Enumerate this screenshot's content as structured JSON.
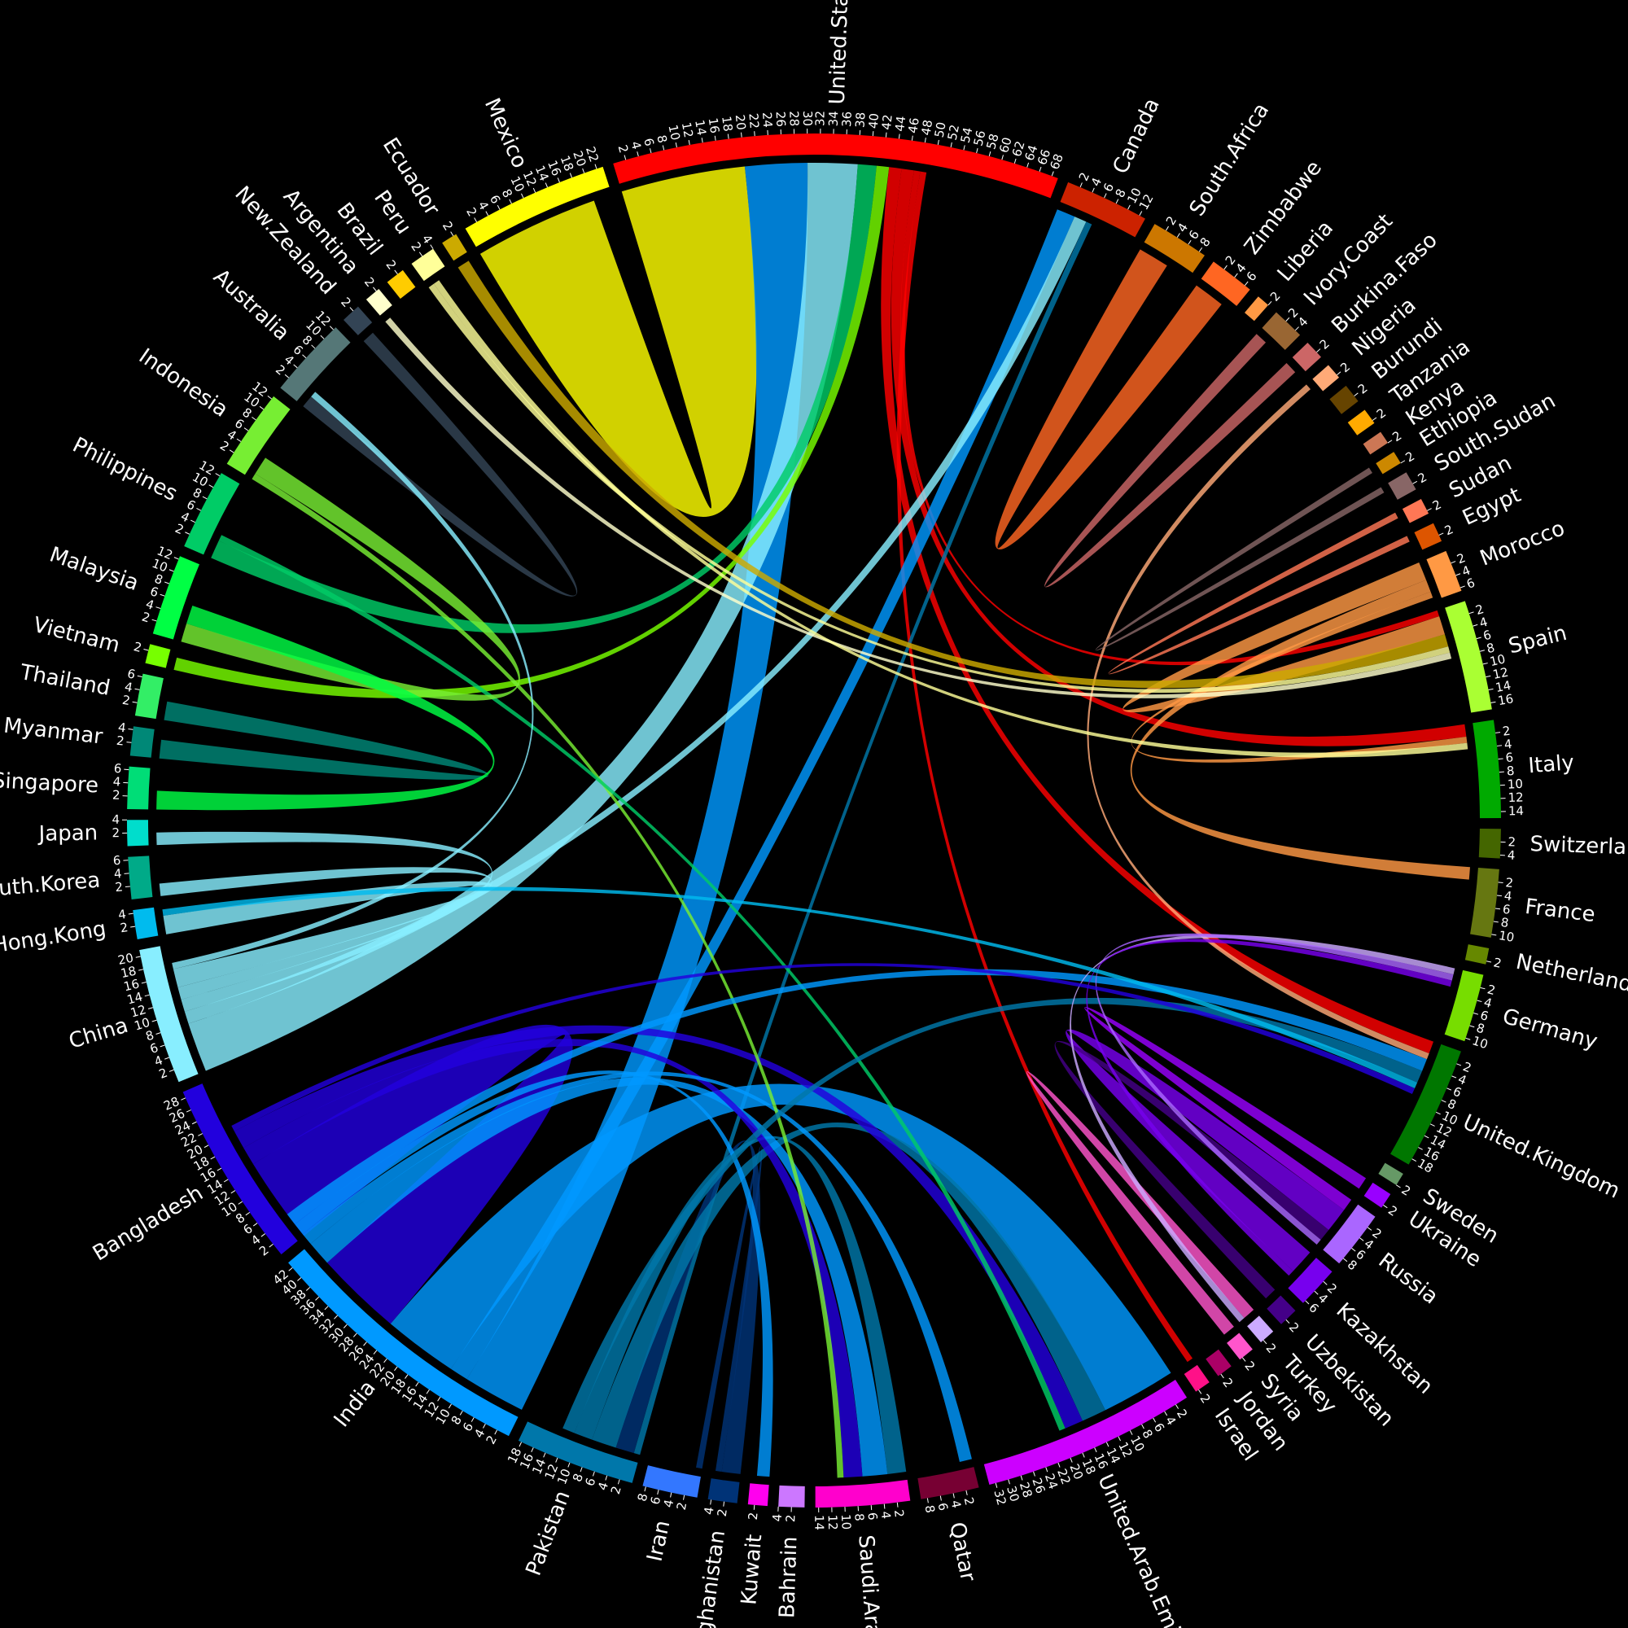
{
  "chart_data": {
    "type": "chord",
    "sectors": [
      {
        "name": "United.States",
        "value": 69,
        "color": "#ff0000",
        "ticks": [
          2,
          4,
          6,
          8,
          10,
          12,
          14,
          16,
          18,
          20,
          22,
          24,
          26,
          28,
          30,
          32,
          34,
          36,
          38,
          40,
          42,
          44,
          46,
          48,
          50,
          52,
          54,
          56,
          58,
          60,
          62,
          64,
          66,
          68
        ]
      },
      {
        "name": "Canada",
        "value": 13,
        "color": "#cc2200",
        "ticks": [
          2,
          4,
          6,
          8,
          10,
          12
        ]
      },
      {
        "name": "South.Africa",
        "value": 9,
        "color": "#cc7700",
        "ticks": [
          2,
          4,
          6,
          8
        ]
      },
      {
        "name": "Zimbabwe",
        "value": 7,
        "color": "#ff6622",
        "ticks": [
          2,
          4,
          6
        ]
      },
      {
        "name": "Liberia",
        "value": 2,
        "color": "#ff9944",
        "ticks": [
          2
        ]
      },
      {
        "name": "Ivory.Coast",
        "value": 5,
        "color": "#996633",
        "ticks": [
          2,
          4
        ]
      },
      {
        "name": "Burkina.Faso",
        "value": 3,
        "color": "#cc6666",
        "ticks": [
          2
        ]
      },
      {
        "name": "Nigeria",
        "value": 2.5,
        "color": "#ffaa77",
        "ticks": [
          2
        ]
      },
      {
        "name": "Burundi",
        "value": 3,
        "color": "#664400",
        "ticks": [
          2
        ]
      },
      {
        "name": "Tanzania",
        "value": 2.5,
        "color": "#ffaa00",
        "ticks": [
          2
        ]
      },
      {
        "name": "Kenya",
        "value": 2,
        "color": "#cc7755",
        "ticks": [
          2
        ]
      },
      {
        "name": "Ethiopia",
        "value": 2,
        "color": "#cc8800",
        "ticks": [
          2
        ]
      },
      {
        "name": "South.Sudan",
        "value": 3,
        "color": "#886666",
        "ticks": [
          2
        ]
      },
      {
        "name": "Sudan",
        "value": 2.5,
        "color": "#ff7755",
        "ticks": [
          2
        ]
      },
      {
        "name": "Egypt",
        "value": 3,
        "color": "#dd5500",
        "ticks": [
          2
        ]
      },
      {
        "name": "Morocco",
        "value": 6.5,
        "color": "#ff9944",
        "ticks": [
          2,
          4,
          6
        ]
      },
      {
        "name": "Spain",
        "value": 17,
        "color": "#aaff33",
        "ticks": [
          2,
          4,
          6,
          8,
          10,
          12,
          14,
          16
        ]
      },
      {
        "name": "Italy",
        "value": 15,
        "color": "#00aa00",
        "ticks": [
          2,
          4,
          6,
          8,
          10,
          12,
          14
        ]
      },
      {
        "name": "Switzerland",
        "value": 4.5,
        "color": "#446600",
        "ticks": [
          2,
          4
        ]
      },
      {
        "name": "France",
        "value": 10.5,
        "color": "#667711",
        "ticks": [
          2,
          4,
          6,
          8,
          10
        ]
      },
      {
        "name": "Netherlands",
        "value": 2.5,
        "color": "#668800",
        "ticks": [
          2
        ]
      },
      {
        "name": "Germany",
        "value": 10.5,
        "color": "#77dd00",
        "ticks": [
          2,
          4,
          6,
          8,
          10
        ]
      },
      {
        "name": "United.Kingdom",
        "value": 19,
        "color": "#007700",
        "ticks": [
          2,
          4,
          6,
          8,
          10,
          12,
          14,
          16,
          18
        ]
      },
      {
        "name": "Sweden",
        "value": 2,
        "color": "#669966",
        "ticks": [
          2
        ]
      },
      {
        "name": "Ukraine",
        "value": 2.5,
        "color": "#9900ff",
        "ticks": [
          2
        ]
      },
      {
        "name": "Russia",
        "value": 9,
        "color": "#aa66ff",
        "ticks": [
          2,
          4,
          6,
          8
        ]
      },
      {
        "name": "Kazakhstan",
        "value": 6.5,
        "color": "#7700ee",
        "ticks": [
          2,
          4,
          6
        ]
      },
      {
        "name": "Uzbekistan",
        "value": 3,
        "color": "#440088",
        "ticks": [
          2
        ]
      },
      {
        "name": "Turkey",
        "value": 2.5,
        "color": "#ccaaff",
        "ticks": [
          2
        ]
      },
      {
        "name": "Syria",
        "value": 2.5,
        "color": "#ff55cc",
        "ticks": [
          2
        ]
      },
      {
        "name": "Jordan",
        "value": 2.5,
        "color": "#aa0066",
        "ticks": [
          2
        ]
      },
      {
        "name": "Israel",
        "value": 2.5,
        "color": "#ff1188",
        "ticks": [
          2
        ]
      },
      {
        "name": "United.Arab.Emirates",
        "value": 33,
        "color": "#cc00ff",
        "ticks": [
          2,
          4,
          6,
          8,
          10,
          12,
          14,
          16,
          18,
          20,
          22,
          24,
          26,
          28,
          30,
          32
        ]
      },
      {
        "name": "Qatar",
        "value": 9,
        "color": "#770033",
        "ticks": [
          2,
          4,
          6,
          8
        ]
      },
      {
        "name": "Saudi.Arabia",
        "value": 14.5,
        "color": "#ff00cc",
        "ticks": [
          2,
          4,
          6,
          8,
          10,
          12,
          14
        ]
      },
      {
        "name": "Bahrain",
        "value": 4,
        "color": "#cc77ff",
        "ticks": [
          2,
          4
        ]
      },
      {
        "name": "Kuwait",
        "value": 3,
        "color": "#ff00ee",
        "ticks": [
          2
        ]
      },
      {
        "name": "Afghanistan",
        "value": 4.5,
        "color": "#003377",
        "ticks": [
          2,
          4
        ]
      },
      {
        "name": "Iran",
        "value": 8.5,
        "color": "#3377ff",
        "ticks": [
          2,
          4,
          6,
          8
        ]
      },
      {
        "name": "Pakistan",
        "value": 18.5,
        "color": "#0077aa",
        "ticks": [
          2,
          4,
          6,
          8,
          10,
          12,
          14,
          16,
          18
        ]
      },
      {
        "name": "India",
        "value": 43,
        "color": "#0099ff",
        "ticks": [
          2,
          4,
          6,
          8,
          10,
          12,
          14,
          16,
          18,
          20,
          22,
          24,
          26,
          28,
          30,
          32,
          34,
          36,
          38,
          40,
          42
        ]
      },
      {
        "name": "Bangladesh",
        "value": 29,
        "color": "#2200dd",
        "ticks": [
          2,
          4,
          6,
          8,
          10,
          12,
          14,
          16,
          18,
          20,
          22,
          24,
          26,
          28
        ]
      },
      {
        "name": "China",
        "value": 21,
        "color": "#88eeff",
        "ticks": [
          2,
          4,
          6,
          8,
          10,
          12,
          14,
          16,
          18,
          20
        ]
      },
      {
        "name": "Hong.Kong",
        "value": 4.5,
        "color": "#00bbee",
        "ticks": [
          2,
          4
        ]
      },
      {
        "name": "South.Korea",
        "value": 6.5,
        "color": "#00aa88",
        "ticks": [
          2,
          4,
          6
        ]
      },
      {
        "name": "Japan",
        "value": 4,
        "color": "#00ddcc",
        "ticks": [
          2,
          4
        ]
      },
      {
        "name": "Singapore",
        "value": 6.5,
        "color": "#00dd77",
        "ticks": [
          2,
          4,
          6
        ]
      },
      {
        "name": "Myanmar",
        "value": 4.5,
        "color": "#008877",
        "ticks": [
          2,
          4
        ]
      },
      {
        "name": "Thailand",
        "value": 6.5,
        "color": "#33ee66",
        "ticks": [
          2,
          4,
          6
        ]
      },
      {
        "name": "Vietnam",
        "value": 3,
        "color": "#77ff00",
        "ticks": [
          2
        ]
      },
      {
        "name": "Malaysia",
        "value": 12.5,
        "color": "#00ff44",
        "ticks": [
          2,
          4,
          6,
          8,
          10,
          12
        ]
      },
      {
        "name": "Philippines",
        "value": 12.5,
        "color": "#00cc66",
        "ticks": [
          2,
          4,
          6,
          8,
          10,
          12
        ]
      },
      {
        "name": "Indonesia",
        "value": 12.5,
        "color": "#77ee33",
        "ticks": [
          2,
          4,
          6,
          8,
          10,
          12
        ]
      },
      {
        "name": "Australia",
        "value": 12.5,
        "color": "#557777",
        "ticks": [
          2,
          4,
          6,
          8,
          10,
          12
        ]
      },
      {
        "name": "New.Zealand",
        "value": 3,
        "color": "#334455",
        "ticks": [
          2
        ]
      },
      {
        "name": "Argentina",
        "value": 2.5,
        "color": "#ffffcc",
        "ticks": [
          2
        ]
      },
      {
        "name": "Brazil",
        "value": 3,
        "color": "#ffcc00",
        "ticks": [
          2
        ]
      },
      {
        "name": "Peru",
        "value": 4,
        "color": "#ffff99",
        "ticks": [
          2,
          4
        ]
      },
      {
        "name": "Ecuador",
        "value": 2.5,
        "color": "#ccaa00",
        "ticks": [
          2
        ]
      },
      {
        "name": "Mexico",
        "value": 23,
        "color": "#ffff00",
        "ticks": [
          2,
          4,
          6,
          8,
          10,
          12,
          14,
          16,
          18,
          20,
          22
        ]
      }
    ],
    "flows": [
      {
        "from": "Mexico",
        "to": "United.States",
        "value": 20
      },
      {
        "from": "India",
        "to": "United.States",
        "value": 10
      },
      {
        "from": "China",
        "to": "United.States",
        "value": 8
      },
      {
        "from": "Philippines",
        "to": "United.States",
        "value": 3
      },
      {
        "from": "Vietnam",
        "to": "United.States",
        "value": 2
      },
      {
        "from": "United.States",
        "to": "United.Kingdom",
        "value": 2
      },
      {
        "from": "United.States",
        "to": "Italy",
        "value": 2
      },
      {
        "from": "United.States",
        "to": "Spain",
        "value": 1
      },
      {
        "from": "United.States",
        "to": "Israel",
        "value": 1
      },
      {
        "from": "India",
        "to": "Canada",
        "value": 3
      },
      {
        "from": "China",
        "to": "Canada",
        "value": 2
      },
      {
        "from": "Pakistan",
        "to": "Canada",
        "value": 1
      },
      {
        "from": "Zimbabwe",
        "to": "South.Africa",
        "value": 5
      },
      {
        "from": "Burkina.Faso",
        "to": "Ivory.Coast",
        "value": 2
      },
      {
        "from": "Nigeria",
        "to": "United.Kingdom",
        "value": 1
      },
      {
        "from": "South.Sudan",
        "to": "Ethiopia",
        "value": 1
      },
      {
        "from": "Sudan",
        "to": "Egypt",
        "value": 1
      },
      {
        "from": "Morocco",
        "to": "Spain",
        "value": 3
      },
      {
        "from": "Morocco",
        "to": "France",
        "value": 2
      },
      {
        "from": "Morocco",
        "to": "Italy",
        "value": 1
      },
      {
        "from": "Ecuador",
        "to": "Spain",
        "value": 2
      },
      {
        "from": "Peru",
        "to": "Spain",
        "value": 1
      },
      {
        "from": "Argentina",
        "to": "Spain",
        "value": 1
      },
      {
        "from": "Peru",
        "to": "Italy",
        "value": 1
      },
      {
        "from": "Ukraine",
        "to": "Russia",
        "value": 2
      },
      {
        "from": "Kazakhstan",
        "to": "Russia",
        "value": 4
      },
      {
        "from": "Uzbekistan",
        "to": "Russia",
        "value": 2
      },
      {
        "from": "Syria",
        "to": "Turkey",
        "value": 2
      },
      {
        "from": "India",
        "to": "United.Arab.Emirates",
        "value": 12
      },
      {
        "from": "Bangladesh",
        "to": "India",
        "value": 14
      },
      {
        "from": "Afghanistan",
        "to": "Pakistan",
        "value": 3
      },
      {
        "from": "Afghanistan",
        "to": "Iran",
        "value": 1
      },
      {
        "from": "Pakistan",
        "to": "United.Arab.Emirates",
        "value": 4
      },
      {
        "from": "Pakistan",
        "to": "Saudi.Arabia",
        "value": 3
      },
      {
        "from": "India",
        "to": "Saudi.Arabia",
        "value": 4
      },
      {
        "from": "Bangladesh",
        "to": "Saudi.Arabia",
        "value": 3
      },
      {
        "from": "Bangladesh",
        "to": "United.Arab.Emirates",
        "value": 3
      },
      {
        "from": "India",
        "to": "Qatar",
        "value": 2
      },
      {
        "from": "India",
        "to": "Kuwait",
        "value": 2
      },
      {
        "from": "Indonesia",
        "to": "Saudi.Arabia",
        "value": 1
      },
      {
        "from": "Philippines",
        "to": "United.Arab.Emirates",
        "value": 1
      },
      {
        "from": "India",
        "to": "United.Kingdom",
        "value": 2
      },
      {
        "from": "Pakistan",
        "to": "United.Kingdom",
        "value": 2
      },
      {
        "from": "China",
        "to": "Japan",
        "value": 2
      },
      {
        "from": "China",
        "to": "South.Korea",
        "value": 2
      },
      {
        "from": "China",
        "to": "Hong.Kong",
        "value": 3
      },
      {
        "from": "Indonesia",
        "to": "Malaysia",
        "value": 3
      },
      {
        "from": "Myanmar",
        "to": "Thailand",
        "value": 3
      },
      {
        "from": "Malaysia",
        "to": "Singapore",
        "value": 3
      },
      {
        "from": "New.Zealand",
        "to": "Australia",
        "value": 2
      },
      {
        "from": "China",
        "to": "Australia",
        "value": 1
      },
      {
        "from": "Turkey",
        "to": "Germany",
        "value": 1
      },
      {
        "from": "Russia",
        "to": "Germany",
        "value": 1
      },
      {
        "from": "Kazakhstan",
        "to": "Germany",
        "value": 1
      },
      {
        "from": "Hong.Kong",
        "to": "United.Kingdom",
        "value": 1
      },
      {
        "from": "Bangladesh",
        "to": "United.Kingdom",
        "value": 1
      }
    ]
  }
}
